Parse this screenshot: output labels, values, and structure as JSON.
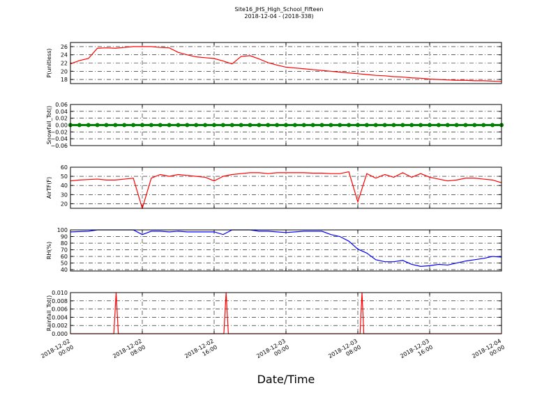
{
  "chart_data": [
    {
      "type": "line",
      "title": "Site16_JHS_High_School_Fifteen",
      "subtitle": "2018-12-04 - (2018-338)",
      "ylabel": "P(unitless)",
      "color": "#ff0000",
      "grid": true,
      "xlim": [
        "2018-12-02 00:00",
        "2018-12-04 00:00"
      ],
      "xticks": [
        "2018-12-02 00:00",
        "2018-12-02 08:00",
        "2018-12-02 16:00",
        "2018-12-03 00:00",
        "2018-12-03 08:00",
        "2018-12-03 16:00",
        "2018-12-04 00:00"
      ],
      "ylim": [
        17,
        27
      ],
      "yticks": [
        18,
        20,
        22,
        24,
        26
      ],
      "x": [
        "2018-12-02 00:00",
        "2018-12-02 01:00",
        "2018-12-02 02:00",
        "2018-12-02 03:00",
        "2018-12-02 04:00",
        "2018-12-02 05:00",
        "2018-12-02 06:00",
        "2018-12-02 07:00",
        "2018-12-02 08:00",
        "2018-12-02 09:00",
        "2018-12-02 10:00",
        "2018-12-02 11:00",
        "2018-12-02 12:00",
        "2018-12-02 13:00",
        "2018-12-02 14:00",
        "2018-12-02 15:00",
        "2018-12-02 16:00",
        "2018-12-02 17:00",
        "2018-12-02 18:00",
        "2018-12-02 19:00",
        "2018-12-02 20:00",
        "2018-12-02 21:00",
        "2018-12-02 22:00",
        "2018-12-02 23:00",
        "2018-12-03 00:00",
        "2018-12-03 01:00",
        "2018-12-03 02:00",
        "2018-12-03 03:00",
        "2018-12-03 04:00",
        "2018-12-03 05:00",
        "2018-12-03 06:00",
        "2018-12-03 07:00",
        "2018-12-03 08:00",
        "2018-12-03 09:00",
        "2018-12-03 10:00",
        "2018-12-03 11:00",
        "2018-12-03 12:00",
        "2018-12-03 13:00",
        "2018-12-03 14:00",
        "2018-12-03 15:00",
        "2018-12-03 16:00",
        "2018-12-03 17:00",
        "2018-12-03 18:00",
        "2018-12-03 19:00",
        "2018-12-03 20:00",
        "2018-12-03 21:00",
        "2018-12-03 22:00",
        "2018-12-03 23:00",
        "2018-12-04 00:00"
      ],
      "values": [
        21.8,
        22.6,
        23.1,
        25.6,
        25.7,
        25.6,
        25.8,
        26.0,
        26.0,
        26.0,
        25.8,
        25.7,
        24.6,
        24.0,
        23.5,
        23.3,
        23.1,
        22.5,
        21.8,
        23.6,
        23.8,
        23.0,
        22.1,
        21.5,
        21.0,
        20.8,
        20.6,
        20.4,
        20.2,
        20.0,
        19.8,
        19.6,
        19.4,
        19.2,
        19.0,
        18.9,
        18.7,
        18.6,
        18.4,
        18.3,
        18.1,
        18.0,
        17.9,
        17.8,
        17.8,
        17.7,
        17.7,
        17.6,
        17.5
      ]
    },
    {
      "type": "line",
      "marker": "o",
      "ylabel": "Snowfall_Tot()",
      "color": "#008000",
      "grid": true,
      "xlim": [
        "2018-12-02 00:00",
        "2018-12-04 00:00"
      ],
      "xticks": [
        "2018-12-02 00:00",
        "2018-12-02 08:00",
        "2018-12-02 16:00",
        "2018-12-03 00:00",
        "2018-12-03 08:00",
        "2018-12-03 16:00",
        "2018-12-04 00:00"
      ],
      "ylim": [
        -0.06,
        0.06
      ],
      "yticks": [
        {
          "value": -0.06,
          "label": "−0.06"
        },
        {
          "value": -0.04,
          "label": "−0.04"
        },
        {
          "value": -0.02,
          "label": "−0.02"
        },
        {
          "value": 0,
          "label": "0.00"
        },
        0.02,
        0.04,
        0.06
      ],
      "x": [
        "2018-12-02 00:00",
        "2018-12-02 01:00",
        "2018-12-02 02:00",
        "2018-12-02 03:00",
        "2018-12-02 04:00",
        "2018-12-02 05:00",
        "2018-12-02 06:00",
        "2018-12-02 07:00",
        "2018-12-02 08:00",
        "2018-12-02 09:00",
        "2018-12-02 10:00",
        "2018-12-02 11:00",
        "2018-12-02 12:00",
        "2018-12-02 13:00",
        "2018-12-02 14:00",
        "2018-12-02 15:00",
        "2018-12-02 16:00",
        "2018-12-02 17:00",
        "2018-12-02 18:00",
        "2018-12-02 19:00",
        "2018-12-02 20:00",
        "2018-12-02 21:00",
        "2018-12-02 22:00",
        "2018-12-02 23:00",
        "2018-12-03 00:00",
        "2018-12-03 01:00",
        "2018-12-03 02:00",
        "2018-12-03 03:00",
        "2018-12-03 04:00",
        "2018-12-03 05:00",
        "2018-12-03 06:00",
        "2018-12-03 07:00",
        "2018-12-03 08:00",
        "2018-12-03 09:00",
        "2018-12-03 10:00",
        "2018-12-03 11:00",
        "2018-12-03 12:00",
        "2018-12-03 13:00",
        "2018-12-03 14:00",
        "2018-12-03 15:00",
        "2018-12-03 16:00",
        "2018-12-03 17:00",
        "2018-12-03 18:00",
        "2018-12-03 19:00",
        "2018-12-03 20:00",
        "2018-12-03 21:00",
        "2018-12-03 22:00",
        "2018-12-03 23:00",
        "2018-12-04 00:00"
      ],
      "values": [
        0,
        0,
        0,
        0,
        0,
        0,
        0,
        0,
        0,
        0,
        0,
        0,
        0,
        0,
        0,
        0,
        0,
        0,
        0,
        0,
        0,
        0,
        0,
        0,
        0,
        0,
        0,
        0,
        0,
        0,
        0,
        0,
        0,
        0,
        0,
        0,
        0,
        0,
        0,
        0,
        0,
        0,
        0,
        0,
        0,
        0,
        0,
        0,
        0
      ]
    },
    {
      "type": "line",
      "ylabel": "AirTF(F)",
      "color": "#ff0000",
      "grid": true,
      "xlim": [
        "2018-12-02 00:00",
        "2018-12-04 00:00"
      ],
      "xticks": [
        "2018-12-02 00:00",
        "2018-12-02 08:00",
        "2018-12-02 16:00",
        "2018-12-03 00:00",
        "2018-12-03 08:00",
        "2018-12-03 16:00",
        "2018-12-04 00:00"
      ],
      "ylim": [
        15,
        60
      ],
      "yticks": [
        20,
        30,
        40,
        50,
        60
      ],
      "x": [
        "2018-12-02 00:00",
        "2018-12-02 01:00",
        "2018-12-02 02:00",
        "2018-12-02 03:00",
        "2018-12-02 04:00",
        "2018-12-02 05:00",
        "2018-12-02 06:00",
        "2018-12-02 07:00",
        "2018-12-02 08:00",
        "2018-12-02 09:00",
        "2018-12-02 10:00",
        "2018-12-02 11:00",
        "2018-12-02 12:00",
        "2018-12-02 13:00",
        "2018-12-02 14:00",
        "2018-12-02 15:00",
        "2018-12-02 16:00",
        "2018-12-02 17:00",
        "2018-12-02 18:00",
        "2018-12-02 19:00",
        "2018-12-02 20:00",
        "2018-12-02 21:00",
        "2018-12-02 22:00",
        "2018-12-02 23:00",
        "2018-12-03 00:00",
        "2018-12-03 01:00",
        "2018-12-03 02:00",
        "2018-12-03 03:00",
        "2018-12-03 04:00",
        "2018-12-03 05:00",
        "2018-12-03 06:00",
        "2018-12-03 07:00",
        "2018-12-03 08:00",
        "2018-12-03 09:00",
        "2018-12-03 10:00",
        "2018-12-03 11:00",
        "2018-12-03 12:00",
        "2018-12-03 13:00",
        "2018-12-03 14:00",
        "2018-12-03 15:00",
        "2018-12-03 16:00",
        "2018-12-03 17:00",
        "2018-12-03 18:00",
        "2018-12-03 19:00",
        "2018-12-03 20:00",
        "2018-12-03 21:00",
        "2018-12-03 22:00",
        "2018-12-03 23:00",
        "2018-12-04 00:00"
      ],
      "values": [
        45,
        46,
        46.5,
        47,
        46,
        46,
        47,
        48,
        15,
        48,
        52,
        50,
        52,
        51,
        50,
        49,
        45,
        50,
        52,
        53,
        54,
        54,
        53,
        54,
        54,
        54,
        54,
        53.5,
        53.5,
        53,
        53,
        55,
        22,
        53,
        48,
        52,
        49,
        54,
        49,
        53,
        49,
        47,
        45,
        46,
        48,
        48,
        47,
        46,
        43
      ]
    },
    {
      "type": "line",
      "ylabel": "RH(%)",
      "color": "#0000ff",
      "grid": true,
      "xlim": [
        "2018-12-02 00:00",
        "2018-12-04 00:00"
      ],
      "xticks": [
        "2018-12-02 00:00",
        "2018-12-02 08:00",
        "2018-12-02 16:00",
        "2018-12-03 00:00",
        "2018-12-03 08:00",
        "2018-12-03 16:00",
        "2018-12-04 00:00"
      ],
      "ylim": [
        38,
        100
      ],
      "yticks": [
        40,
        50,
        60,
        70,
        80,
        90,
        100
      ],
      "x": [
        "2018-12-02 00:00",
        "2018-12-02 01:00",
        "2018-12-02 02:00",
        "2018-12-02 03:00",
        "2018-12-02 04:00",
        "2018-12-02 05:00",
        "2018-12-02 06:00",
        "2018-12-02 07:00",
        "2018-12-02 08:00",
        "2018-12-02 09:00",
        "2018-12-02 10:00",
        "2018-12-02 11:00",
        "2018-12-02 12:00",
        "2018-12-02 13:00",
        "2018-12-02 14:00",
        "2018-12-02 15:00",
        "2018-12-02 16:00",
        "2018-12-02 17:00",
        "2018-12-02 18:00",
        "2018-12-02 19:00",
        "2018-12-02 20:00",
        "2018-12-02 21:00",
        "2018-12-02 22:00",
        "2018-12-02 23:00",
        "2018-12-03 00:00",
        "2018-12-03 01:00",
        "2018-12-03 02:00",
        "2018-12-03 03:00",
        "2018-12-03 04:00",
        "2018-12-03 05:00",
        "2018-12-03 06:00",
        "2018-12-03 07:00",
        "2018-12-03 08:00",
        "2018-12-03 09:00",
        "2018-12-03 10:00",
        "2018-12-03 11:00",
        "2018-12-03 12:00",
        "2018-12-03 13:00",
        "2018-12-03 14:00",
        "2018-12-03 15:00",
        "2018-12-03 16:00",
        "2018-12-03 17:00",
        "2018-12-03 18:00",
        "2018-12-03 19:00",
        "2018-12-03 20:00",
        "2018-12-03 21:00",
        "2018-12-03 22:00",
        "2018-12-03 23:00",
        "2018-12-04 00:00"
      ],
      "values": [
        97,
        97.5,
        98,
        100,
        100,
        100,
        100,
        100,
        93,
        98,
        98,
        97,
        98,
        97,
        97,
        97,
        97,
        93,
        100,
        100,
        100,
        98,
        98,
        97,
        96,
        97,
        98,
        98,
        98,
        93,
        90,
        83,
        71,
        65,
        55,
        52,
        52,
        54,
        48,
        45,
        46,
        48,
        47,
        50,
        53,
        55,
        57,
        60,
        59
      ]
    },
    {
      "type": "line",
      "ylabel": "Rainfall_Tot()",
      "xlabel": "Date/Time",
      "color": "#ff0000",
      "grid": true,
      "xlim": [
        "2018-12-02 00:00",
        "2018-12-04 00:00"
      ],
      "xticks": [
        "2018-12-02 00:00",
        "2018-12-02 08:00",
        "2018-12-02 16:00",
        "2018-12-03 00:00",
        "2018-12-03 08:00",
        "2018-12-03 16:00",
        "2018-12-04 00:00"
      ],
      "ylim": [
        0,
        0.01
      ],
      "yticks": [
        {
          "value": 0,
          "label": "0.000"
        },
        0.002,
        0.004,
        0.006,
        0.008,
        {
          "value": 0.01,
          "label": "0.010"
        }
      ],
      "x": [
        "2018-12-02 00:00",
        "2018-12-02 04:50",
        "2018-12-02 05:05",
        "2018-12-02 05:20",
        "2018-12-02 17:05",
        "2018-12-02 17:20",
        "2018-12-02 17:35",
        "2018-12-03 08:15",
        "2018-12-03 08:28",
        "2018-12-03 08:40",
        "2018-12-04 00:00"
      ],
      "values": [
        0,
        0,
        0.01,
        0,
        0,
        0.01,
        0,
        0,
        0.01,
        0,
        0
      ]
    }
  ]
}
